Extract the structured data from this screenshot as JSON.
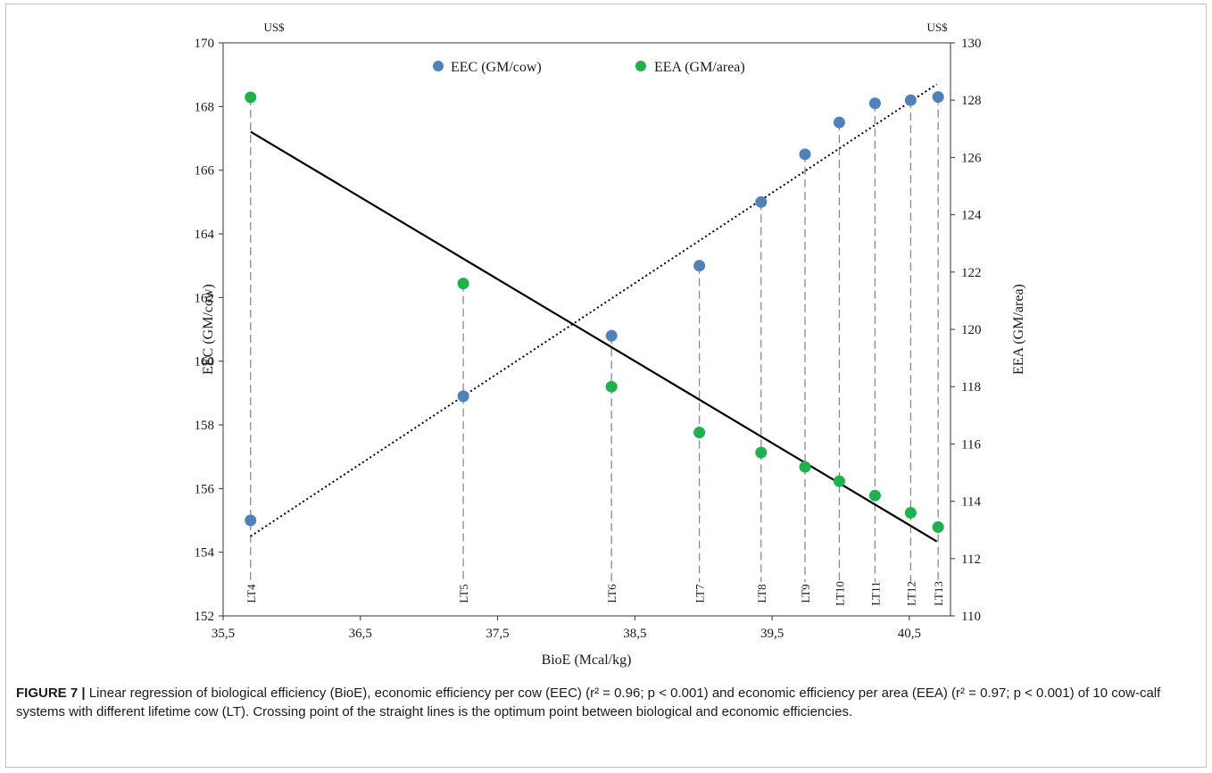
{
  "chart_data": {
    "type": "scatter",
    "xlabel": "BioE (Mcal/kg)",
    "ylabel_left": "EEC (GM/cow)",
    "ylabel_right": "EEA (GM/area)",
    "unit_left": "US$",
    "unit_right": "US$",
    "xlim": [
      35.5,
      40.8
    ],
    "ylim_left": [
      152,
      170
    ],
    "ylim_right": [
      110,
      130
    ],
    "x_ticks": [
      "35,5",
      "36,5",
      "37,5",
      "38,5",
      "39,5",
      "40,5"
    ],
    "x_tick_values": [
      35.5,
      36.5,
      37.5,
      38.5,
      39.5,
      40.5
    ],
    "y_ticks_left": [
      "152",
      "154",
      "156",
      "158",
      "160",
      "162",
      "164",
      "166",
      "168",
      "170"
    ],
    "y_tick_values_left": [
      152,
      154,
      156,
      158,
      160,
      162,
      164,
      166,
      168,
      170
    ],
    "y_ticks_right": [
      "110",
      "112",
      "114",
      "116",
      "118",
      "120",
      "122",
      "124",
      "126",
      "128",
      "130"
    ],
    "y_tick_values_right": [
      110,
      112,
      114,
      116,
      118,
      120,
      122,
      124,
      126,
      128,
      130
    ],
    "grid": false,
    "legend_placement": "top-center",
    "systems": [
      "LT4",
      "LT5",
      "LT6",
      "LT7",
      "LT8",
      "LT9",
      "LT10",
      "LT11",
      "LT12",
      "LT13"
    ],
    "x": [
      35.7,
      37.25,
      38.33,
      38.97,
      39.42,
      39.74,
      39.99,
      40.25,
      40.51,
      40.71
    ],
    "series": [
      {
        "name": "EEC (GM/cow)",
        "axis": "left",
        "color": "#4f81bd",
        "values": [
          155.0,
          158.9,
          160.8,
          163.0,
          165.0,
          166.5,
          167.5,
          168.1,
          168.2,
          168.3
        ],
        "trend": {
          "style": "dotted",
          "x": [
            35.7,
            40.7
          ],
          "y": [
            154.5,
            168.7
          ]
        }
      },
      {
        "name": "EEA (GM/area)",
        "axis": "right",
        "color": "#1db34a",
        "values": [
          128.1,
          121.6,
          118.0,
          116.4,
          115.7,
          115.2,
          114.7,
          114.2,
          113.6,
          113.1
        ],
        "trend": {
          "style": "solid",
          "x": [
            35.7,
            40.7
          ],
          "y": [
            126.9,
            112.6
          ]
        }
      }
    ]
  },
  "caption": {
    "label": "FIGURE 7 |",
    "text": " Linear regression of biological efficiency (BioE), economic efficiency per cow (EEC) (r² = 0.96; p < 0.001) and economic efficiency per area (EEA) (r² = 0.97; p < 0.001) of 10 cow-calf systems with different lifetime cow (LT). Crossing point of the straight lines is the optimum point between biological and economic efficiencies."
  }
}
